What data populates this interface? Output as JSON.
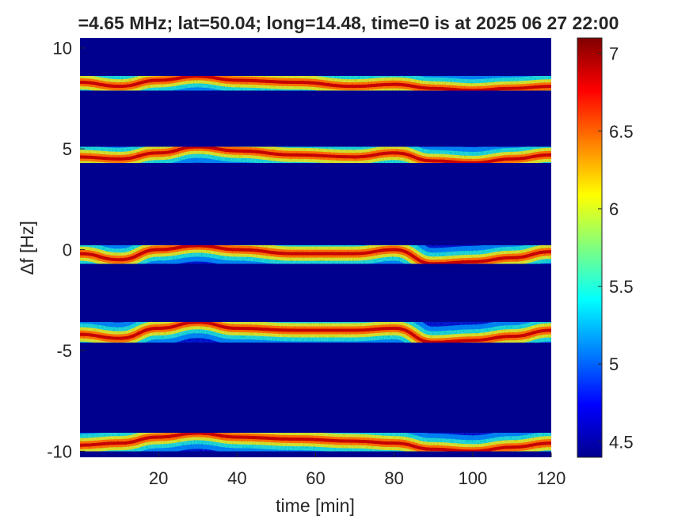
{
  "chart_data": {
    "type": "heatmap",
    "title": "=4.65 MHz;  lat=50.04; long=14.48, time=0 is at 2025 06 27 22:00",
    "xlabel": "time [min]",
    "ylabel": "∆f [Hz]",
    "xlim": [
      0,
      120
    ],
    "ylim": [
      -10.3,
      10.5
    ],
    "x_ticks": [
      20,
      40,
      60,
      80,
      100,
      120
    ],
    "x_tick_labels": [
      "20",
      "40",
      "60",
      "80",
      "100",
      "120"
    ],
    "y_ticks": [
      10,
      5,
      0,
      -5,
      -10
    ],
    "y_tick_labels": [
      "10",
      "5",
      "0",
      "-5",
      "-10"
    ],
    "colorbar": {
      "range": [
        4.4,
        7.1
      ],
      "ticks": [
        7,
        6.5,
        6,
        5.5,
        5,
        4.5
      ],
      "tick_labels": [
        "7",
        "6.5",
        "6",
        "5.5",
        "5",
        "4.5"
      ],
      "colormap": "jet"
    },
    "background_color": "#00008f",
    "bands": [
      {
        "center_hz": 8.2,
        "trace": [
          [
            0,
            8.3
          ],
          [
            10,
            8.1
          ],
          [
            20,
            8.4
          ],
          [
            30,
            8.6
          ],
          [
            40,
            8.4
          ],
          [
            55,
            8.3
          ],
          [
            70,
            8.1
          ],
          [
            80,
            8.2
          ],
          [
            90,
            8.0
          ],
          [
            100,
            7.9
          ],
          [
            110,
            8.0
          ],
          [
            120,
            8.1
          ]
        ]
      },
      {
        "center_hz": 4.7,
        "trace": [
          [
            0,
            4.6
          ],
          [
            10,
            4.5
          ],
          [
            20,
            4.8
          ],
          [
            30,
            5.1
          ],
          [
            40,
            4.9
          ],
          [
            55,
            4.7
          ],
          [
            70,
            4.6
          ],
          [
            80,
            4.8
          ],
          [
            90,
            4.4
          ],
          [
            100,
            4.3
          ],
          [
            110,
            4.5
          ],
          [
            120,
            4.7
          ]
        ]
      },
      {
        "center_hz": 0,
        "trace": [
          [
            0,
            -0.2
          ],
          [
            10,
            -0.5
          ],
          [
            20,
            0.0
          ],
          [
            30,
            0.2
          ],
          [
            40,
            0.0
          ],
          [
            55,
            -0.2
          ],
          [
            70,
            -0.2
          ],
          [
            80,
            0.0
          ],
          [
            90,
            -0.7
          ],
          [
            100,
            -0.6
          ],
          [
            110,
            -0.4
          ],
          [
            120,
            -0.1
          ]
        ]
      },
      {
        "center_hz": -4.1,
        "trace": [
          [
            0,
            -4.2
          ],
          [
            10,
            -4.4
          ],
          [
            20,
            -3.9
          ],
          [
            30,
            -3.6
          ],
          [
            40,
            -3.9
          ],
          [
            55,
            -4.0
          ],
          [
            70,
            -4.0
          ],
          [
            80,
            -3.9
          ],
          [
            90,
            -4.6
          ],
          [
            100,
            -4.5
          ],
          [
            110,
            -4.3
          ],
          [
            120,
            -4.0
          ]
        ]
      },
      {
        "center_hz": -9.5,
        "trace": [
          [
            0,
            -9.7
          ],
          [
            10,
            -9.6
          ],
          [
            20,
            -9.3
          ],
          [
            30,
            -9.1
          ],
          [
            40,
            -9.3
          ],
          [
            55,
            -9.4
          ],
          [
            70,
            -9.5
          ],
          [
            80,
            -9.6
          ],
          [
            90,
            -9.9
          ],
          [
            100,
            -10.0
          ],
          [
            110,
            -9.8
          ],
          [
            120,
            -9.6
          ]
        ]
      }
    ]
  }
}
